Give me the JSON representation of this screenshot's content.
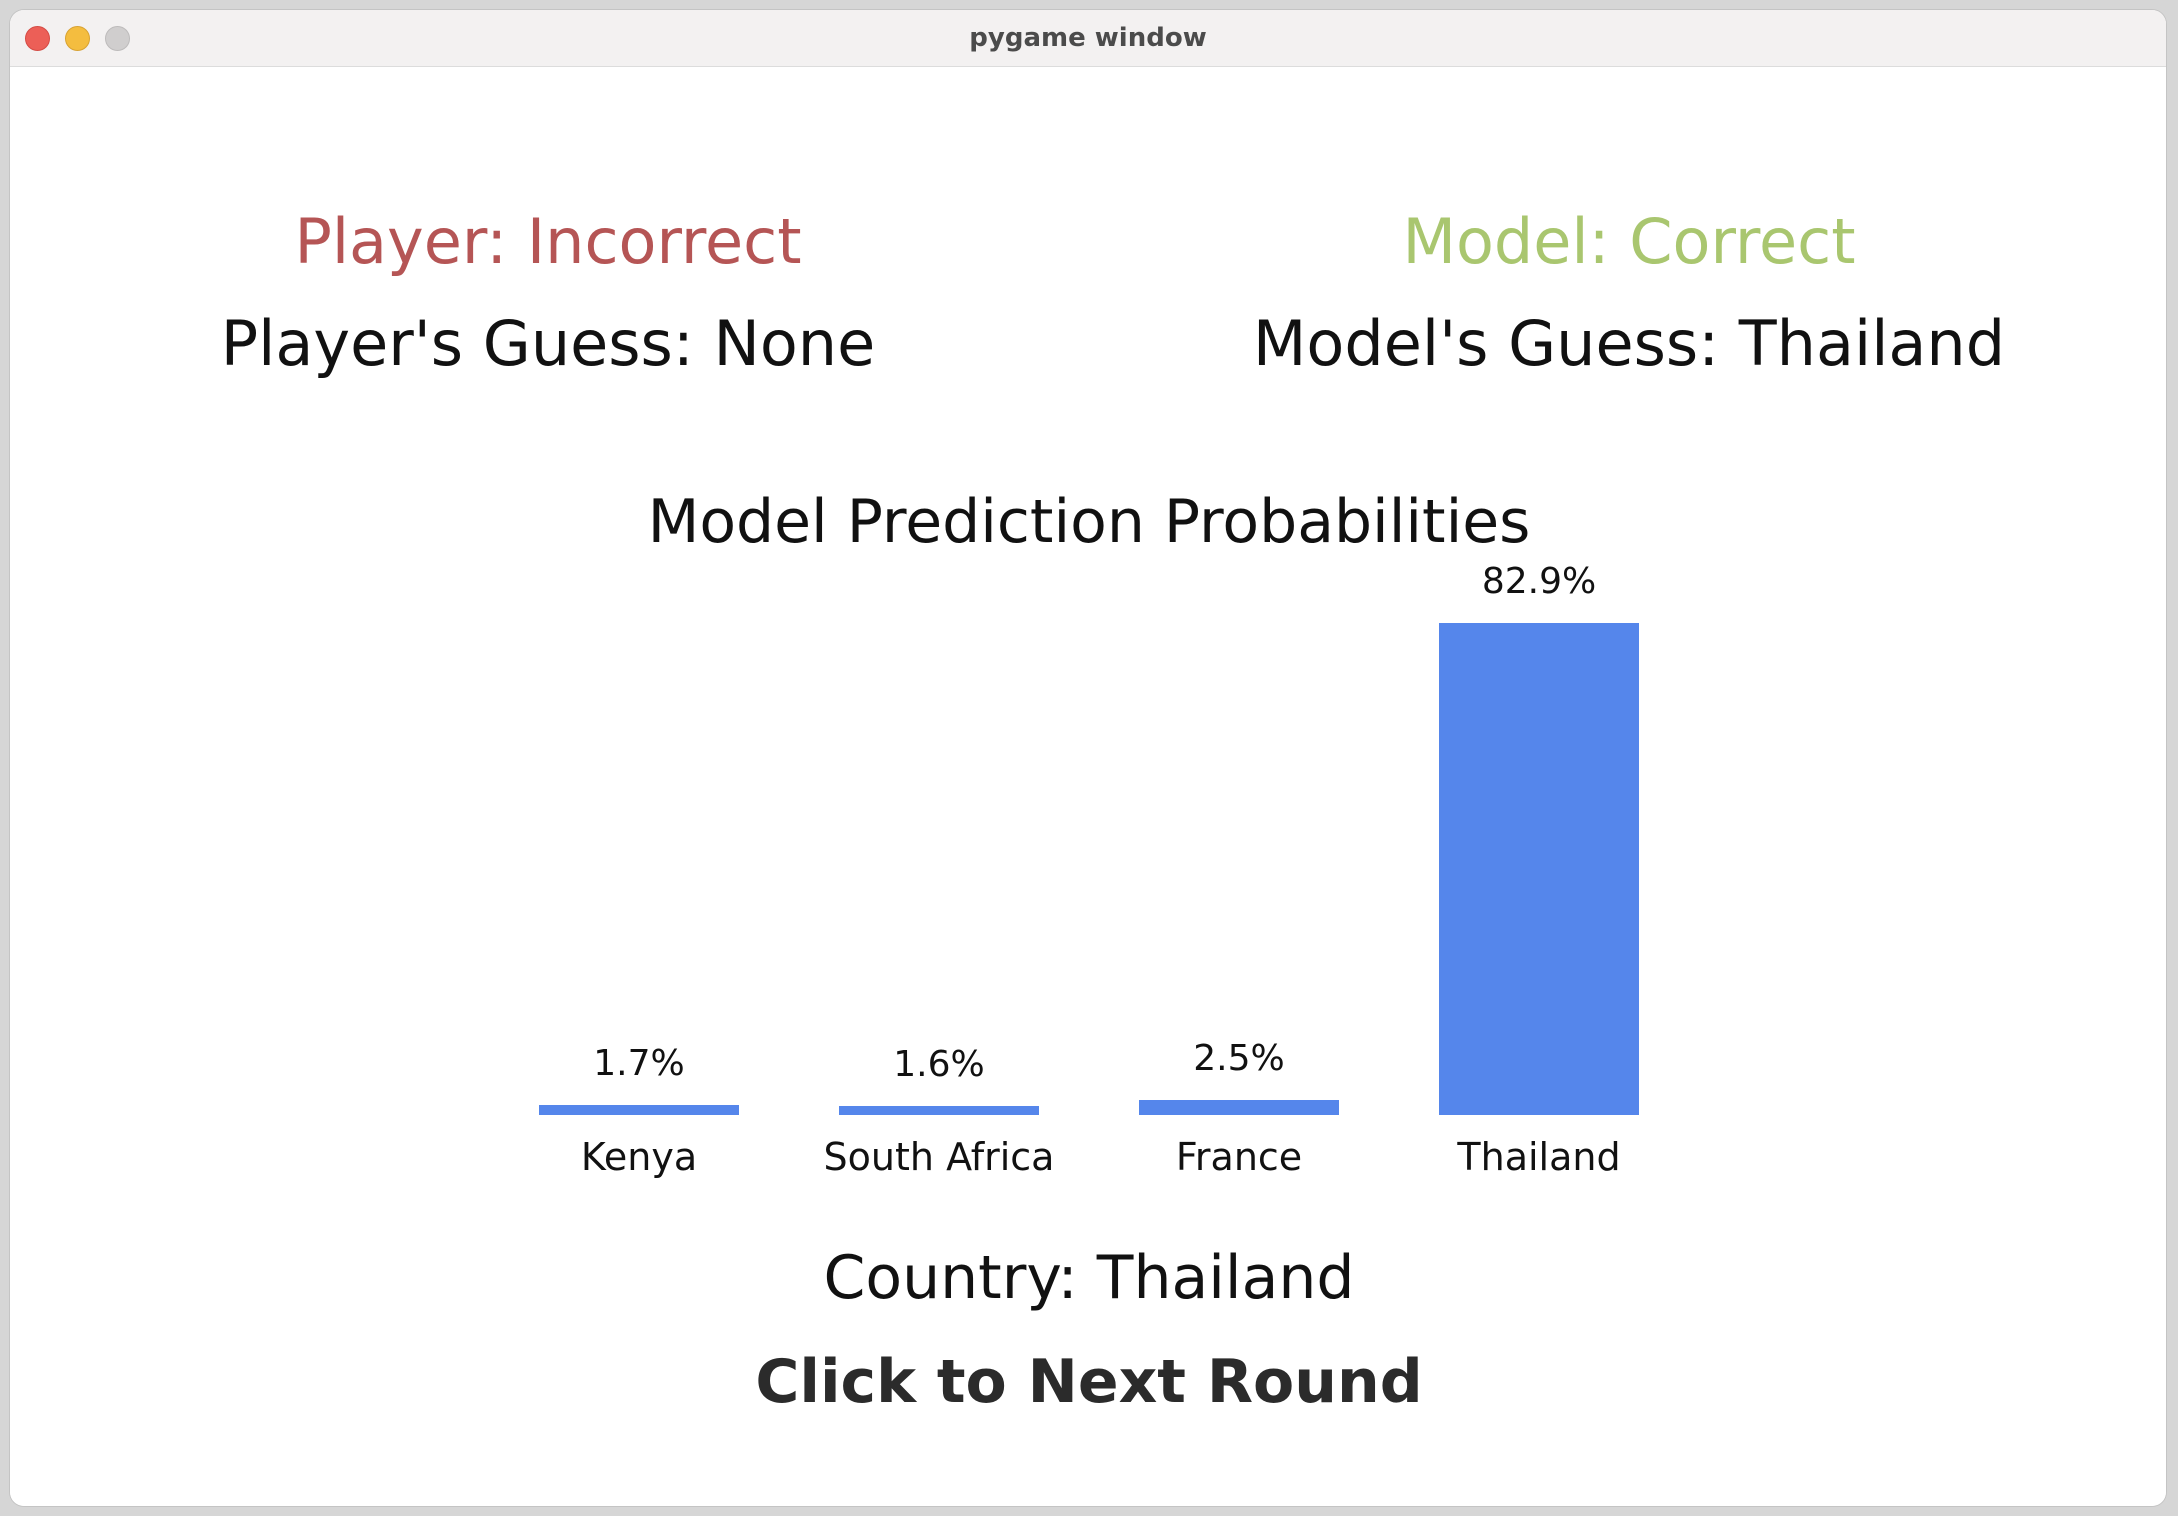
{
  "window": {
    "title": "pygame window"
  },
  "player": {
    "status": "Player: Incorrect",
    "status_color": "#b55555",
    "guess": "Player's Guess: None"
  },
  "model": {
    "status": "Model: Correct",
    "status_color": "#a9c66f",
    "guess": "Model's Guess: Thailand"
  },
  "chart_data": {
    "type": "bar",
    "title": "Model Prediction Probabilities",
    "categories": [
      "Kenya",
      "South Africa",
      "France",
      "Thailand"
    ],
    "values": [
      1.7,
      1.6,
      2.5,
      82.9
    ],
    "value_labels": [
      "1.7%",
      "1.6%",
      "2.5%",
      "82.9%"
    ],
    "bar_color": "#5586eb",
    "grid": false
  },
  "footer": {
    "country": "Country: Thailand",
    "next_round": "Click to Next Round"
  }
}
